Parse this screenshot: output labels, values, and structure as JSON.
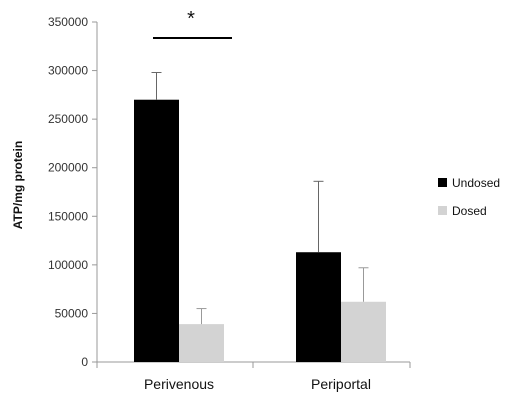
{
  "chart_data": {
    "type": "bar",
    "title": "",
    "xlabel": "",
    "ylabel": "ATP/mg protein",
    "ylim": [
      0,
      350000
    ],
    "yticks": [
      0,
      50000,
      100000,
      150000,
      200000,
      250000,
      300000,
      350000
    ],
    "ytick_labels": [
      "0",
      "50000",
      "100000",
      "150000",
      "200000",
      "250000",
      "300000",
      "350000"
    ],
    "categories": [
      "Perivenous",
      "Periportal"
    ],
    "series": [
      {
        "name": "Undosed",
        "color": "#000000",
        "values": [
          270000,
          113000
        ],
        "error_upper": [
          298000,
          186000
        ]
      },
      {
        "name": "Dosed",
        "color": "#d3d3d3",
        "values": [
          39000,
          62000
        ],
        "error_upper": [
          55000,
          97000
        ]
      }
    ],
    "grid": false,
    "legend_position": "right",
    "annotation": {
      "text": "*",
      "between": "Perivenous Undosed vs Perivenous Dosed"
    }
  }
}
